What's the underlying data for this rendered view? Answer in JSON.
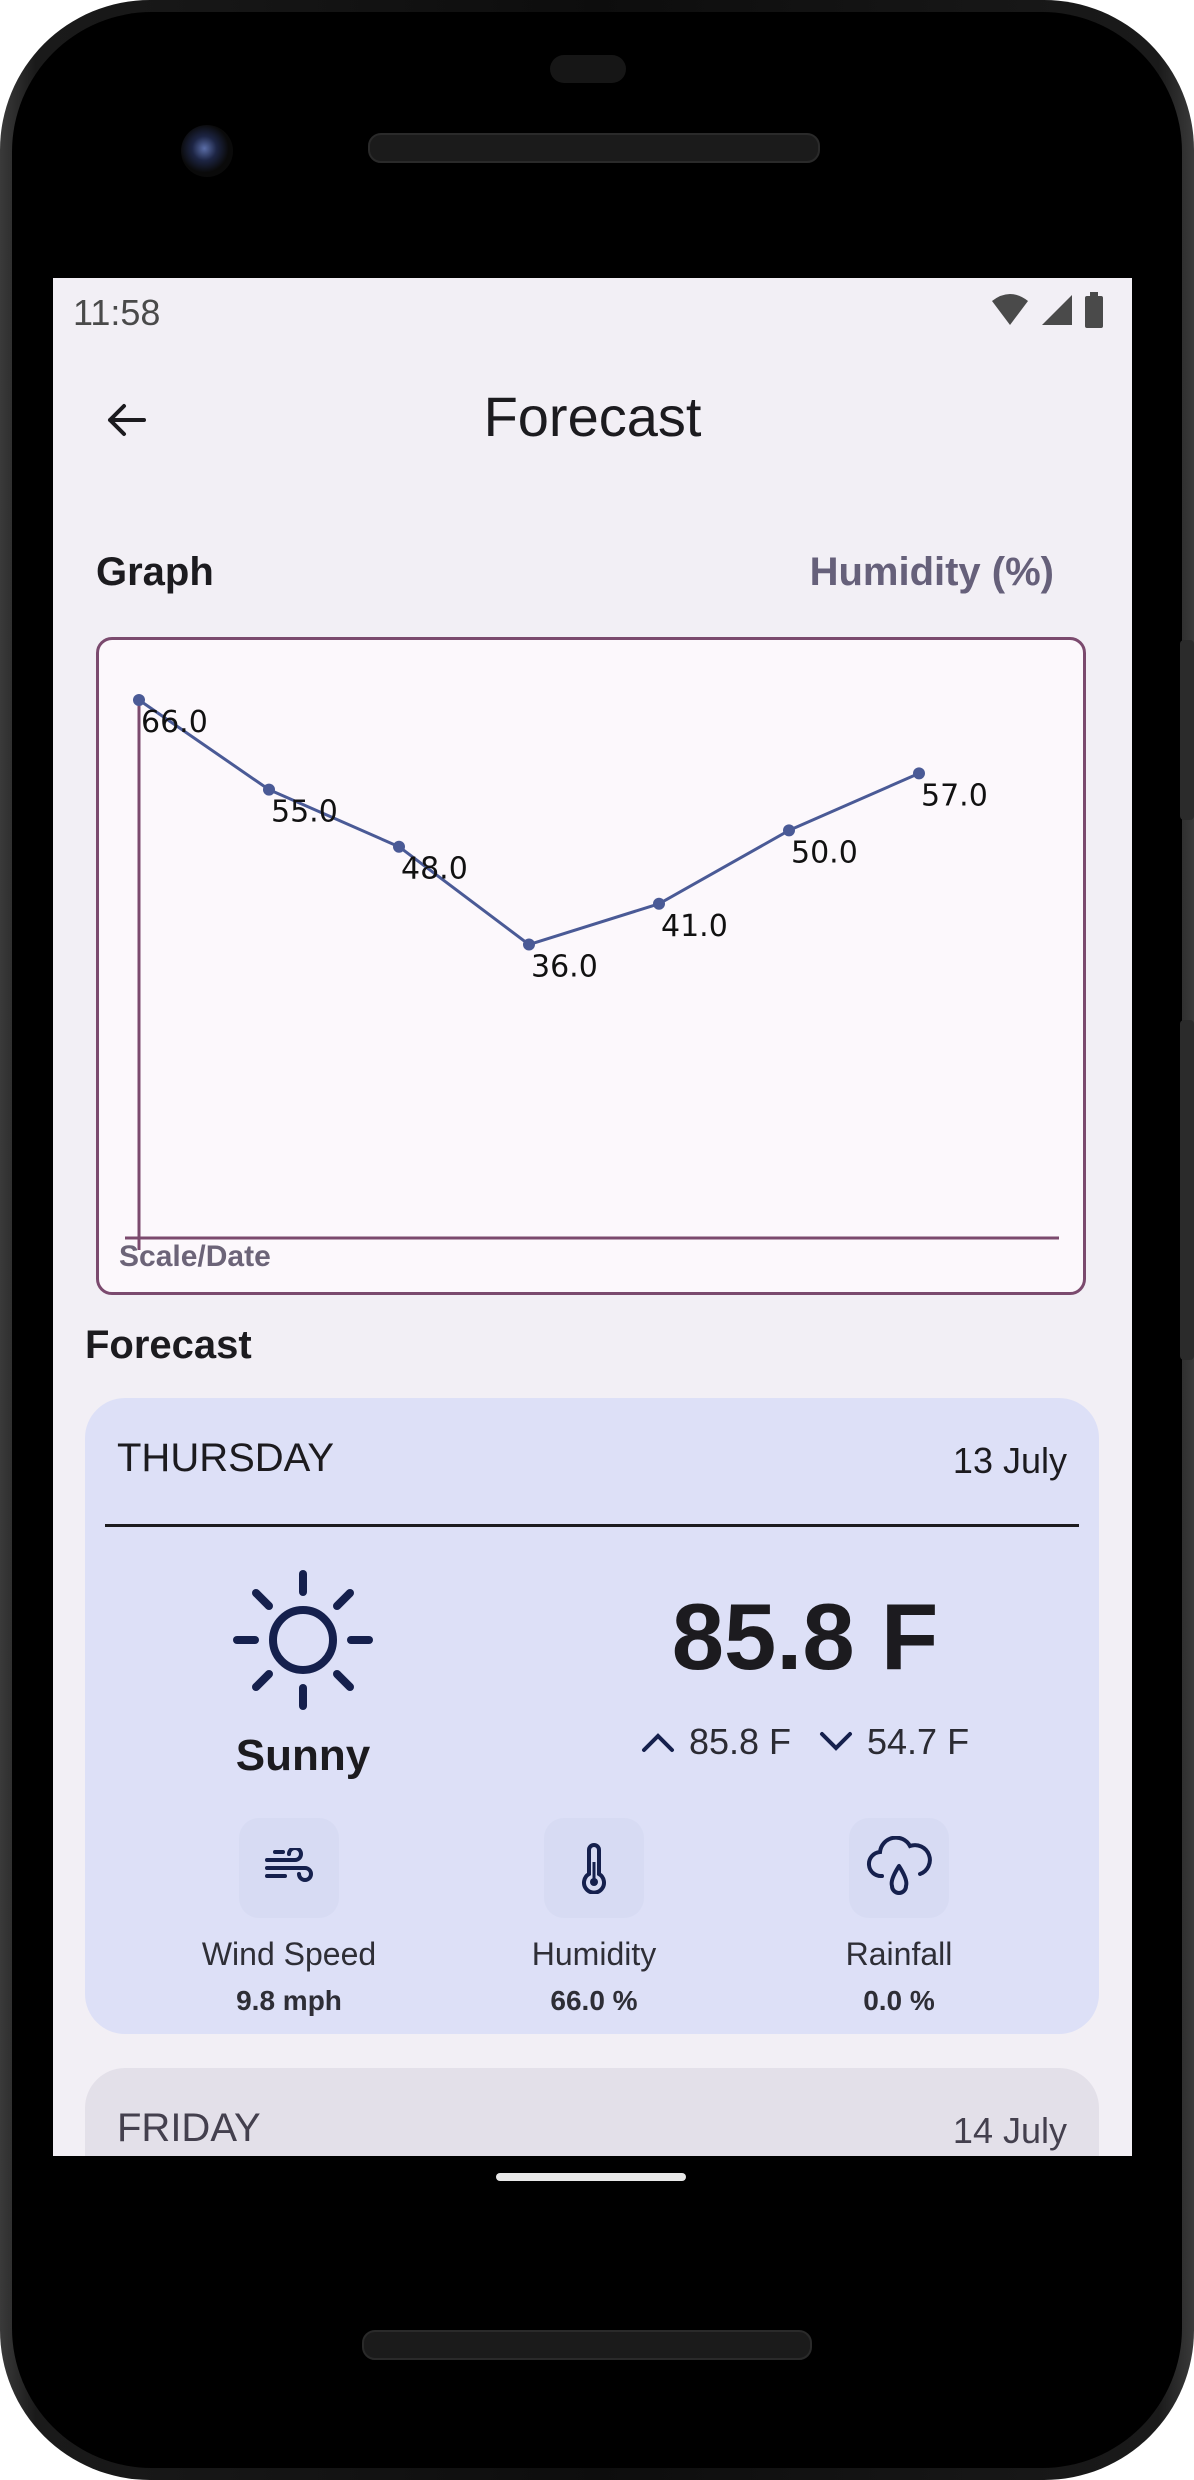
{
  "status_bar": {
    "time": "11:58"
  },
  "app_bar": {
    "title": "Forecast"
  },
  "graph_section": {
    "label": "Graph",
    "metric": "Humidity (%)"
  },
  "chart_data": {
    "type": "line",
    "categories": [
      "",
      "",
      "",
      "",
      "",
      "",
      ""
    ],
    "values": [
      66.0,
      55.0,
      48.0,
      36.0,
      41.0,
      50.0,
      57.0
    ],
    "value_labels": [
      "66.0",
      "55.0",
      "48.0",
      "36.0",
      "41.0",
      "50.0",
      "57.0"
    ],
    "xlabel": "Scale/Date",
    "ylabel": "",
    "ylim": [
      0,
      66
    ],
    "grid": false,
    "line_color": "#4a5a96",
    "axis_color": "#7b4a6e"
  },
  "forecast_heading": "Forecast",
  "cards": [
    {
      "day": "THURSDAY",
      "date": "13 July",
      "condition": "Sunny",
      "condition_icon": "sun-icon",
      "temperature": "85.8 F",
      "high": "85.8 F",
      "low": "54.7 F",
      "stats": [
        {
          "icon": "wind-icon",
          "label": "Wind Speed",
          "value": "9.8 mph"
        },
        {
          "icon": "thermometer-icon",
          "label": "Humidity",
          "value": "66.0 %"
        },
        {
          "icon": "rain-cloud-icon",
          "label": "Rainfall",
          "value": "0.0 %"
        }
      ]
    },
    {
      "day": "FRIDAY",
      "date": "14 July"
    }
  ],
  "colors": {
    "screen_bg": "#f2eff5",
    "card_bg": "#dde0f7",
    "card_inactive_bg": "#e3e0e9",
    "icon_dark": "#15204d"
  }
}
